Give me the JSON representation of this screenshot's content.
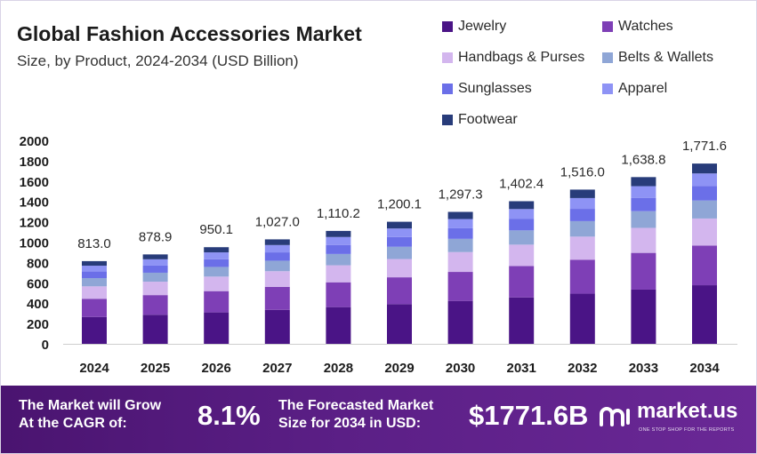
{
  "header": {
    "title": "Global Fashion Accessories Market",
    "subtitle": "Size, by Product, 2024-2034 (USD Billion)"
  },
  "chart_data": {
    "type": "bar",
    "stacked": true,
    "title": "Global Fashion Accessories Market",
    "subtitle": "Size, by Product, 2024-2034 (USD Billion)",
    "categories": [
      "2024",
      "2025",
      "2026",
      "2027",
      "2028",
      "2029",
      "2030",
      "2031",
      "2032",
      "2033",
      "2034"
    ],
    "totals": [
      813.0,
      878.9,
      950.1,
      1027.0,
      1110.2,
      1200.1,
      1297.3,
      1402.4,
      1516.0,
      1638.8,
      1771.6
    ],
    "total_labels": [
      "813.0",
      "878.9",
      "950.1",
      "1,027.0",
      "1,110.2",
      "1,200.1",
      "1,297.3",
      "1,402.4",
      "1,516.0",
      "1,638.8",
      "1,771.6"
    ],
    "series": [
      {
        "name": "Jewelry",
        "color": "#4a1486",
        "values": [
          264,
          286,
          309,
          334,
          361,
          390,
          422,
          456,
          493,
          533,
          576
        ]
      },
      {
        "name": "Watches",
        "color": "#7e3fb6",
        "values": [
          179,
          193,
          209,
          226,
          244,
          264,
          285,
          309,
          334,
          361,
          390
        ]
      },
      {
        "name": "Handbags & Purses",
        "color": "#d3b6ee",
        "values": [
          122,
          132,
          143,
          154,
          167,
          180,
          195,
          210,
          227,
          246,
          266
        ]
      },
      {
        "name": "Belts & Wallets",
        "color": "#8fa6d6",
        "values": [
          81,
          88,
          95,
          103,
          111,
          120,
          130,
          140,
          152,
          164,
          177
        ]
      },
      {
        "name": "Sunglasses",
        "color": "#6b6fe8",
        "values": [
          65,
          70,
          76,
          82,
          89,
          96,
          104,
          112,
          121,
          131,
          142
        ]
      },
      {
        "name": "Apparel",
        "color": "#8e93f5",
        "values": [
          57,
          62,
          67,
          72,
          78,
          84,
          91,
          98,
          106,
          115,
          124
        ]
      },
      {
        "name": "Footwear",
        "color": "#283c7a",
        "values": [
          45,
          48,
          51,
          56,
          60,
          66,
          70,
          77,
          83,
          89,
          97
        ]
      }
    ],
    "yticks": [
      0,
      200,
      400,
      600,
      800,
      1000,
      1200,
      1400,
      1600,
      1800,
      2000
    ],
    "ylim": [
      0,
      2000
    ],
    "xlabel": "",
    "ylabel": "",
    "grid": false,
    "legend": "top-right"
  },
  "banner": {
    "cagr_text_line1": "The Market will Grow",
    "cagr_text_line2": "At the CAGR of:",
    "cagr_value": "8.1%",
    "forecast_text_line1": "The Forecasted Market",
    "forecast_text_line2": "Size for 2034 in USD:",
    "forecast_value": "$1771.6B",
    "brand": "market.us",
    "tagline": "ONE STOP SHOP FOR THE REPORTS"
  }
}
